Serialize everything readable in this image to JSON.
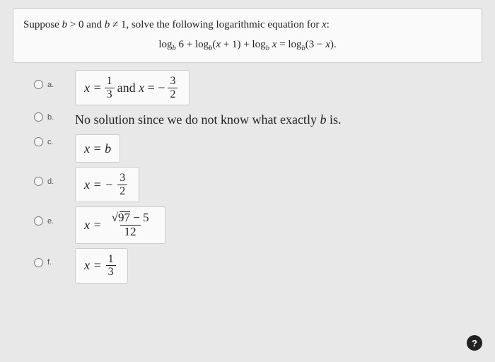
{
  "question": {
    "prompt_html": "Suppose <span class='italic'>b</span> &gt; 0 and <span class='italic'>b</span> ≠ 1, solve the following logarithmic equation for <span class='italic'>x</span>:",
    "equation_html": "log<sub>b</sub> 6 + log<sub>b</sub>(<span class='italic'>x</span> + 1) + log<sub>b</sub> <span class='italic'>x</span> = log<sub>b</sub>(3 − <span class='italic'>x</span>)."
  },
  "options": [
    {
      "letter": "a.",
      "type": "box-frac2",
      "prefix1": "x =",
      "n1": "1",
      "d1": "3",
      "mid": " and x = −",
      "n2": "3",
      "d2": "2"
    },
    {
      "letter": "b.",
      "type": "text",
      "text": "No solution since we do not know what exactly b is.",
      "italic_b": true
    },
    {
      "letter": "c.",
      "type": "box-plain",
      "text": "x = b"
    },
    {
      "letter": "d.",
      "type": "box-frac1",
      "prefix": "x = −",
      "n": "3",
      "d": "2"
    },
    {
      "letter": "e.",
      "type": "box-sqrt",
      "prefix": "x =",
      "num_html": "<span class='sqrt-sym'>√97</span> − 5",
      "den": "12"
    },
    {
      "letter": "f.",
      "type": "box-frac1",
      "prefix": "x =",
      "n": "1",
      "d": "3"
    }
  ],
  "help_label": "?",
  "colors": {
    "bg": "#e8e8e8",
    "box": "#fafafa",
    "border": "#ccc",
    "text": "#222"
  }
}
